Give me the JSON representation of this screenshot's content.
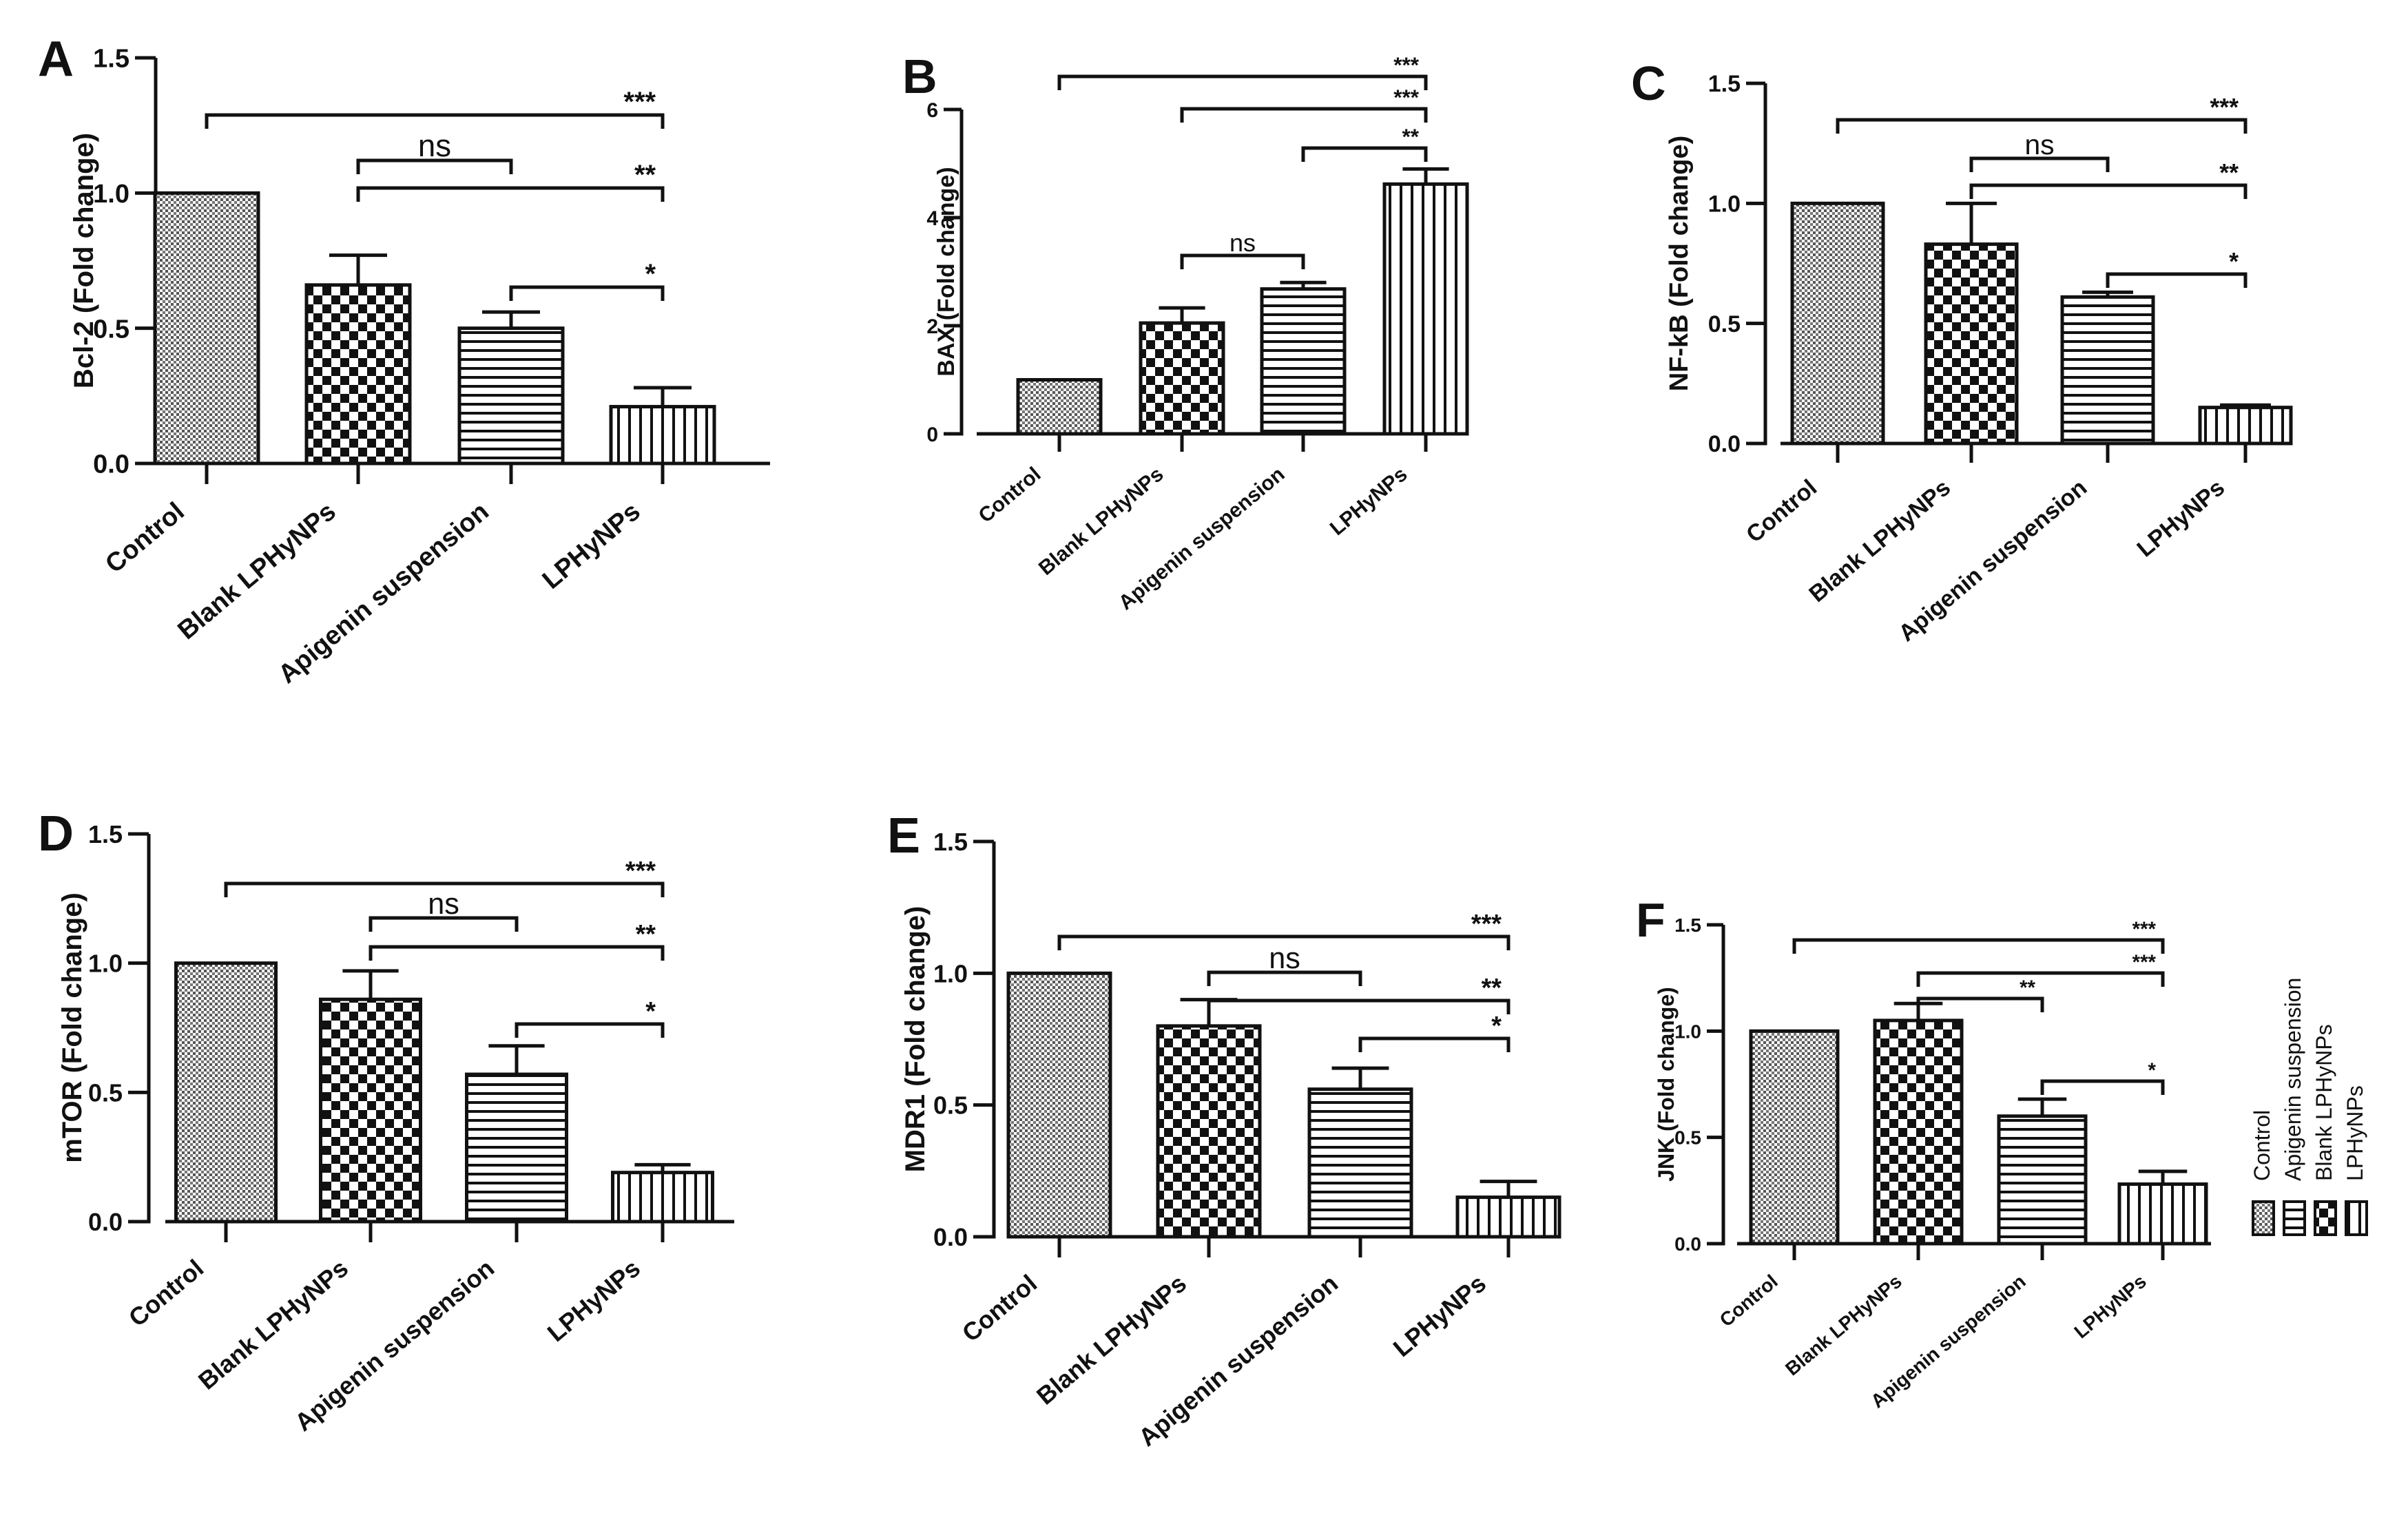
{
  "figure": {
    "categories": [
      "Control",
      "Blank LPHyNPs",
      "Apigenin suspension",
      "LPHyNPs"
    ],
    "patterns": [
      "control",
      "blank",
      "apigenin",
      "lphynps"
    ],
    "legend": {
      "entries": [
        {
          "label": "Control",
          "pattern": "control"
        },
        {
          "label": "Apigenin suspension",
          "pattern": "apigenin"
        },
        {
          "label": "Blank LPHyNPs",
          "pattern": "blank"
        },
        {
          "label": "LPHyNPs",
          "pattern": "lphynps"
        }
      ]
    }
  },
  "chart_data": [
    {
      "type": "bar",
      "panel": "A",
      "ylabel": "Bcl-2 (Fold change)",
      "categories": [
        "Control",
        "Blank LPHyNPs",
        "Apigenin suspension",
        "LPHyNPs"
      ],
      "values": [
        1.0,
        0.66,
        0.5,
        0.21
      ],
      "errors": [
        0,
        0.11,
        0.06,
        0.07
      ],
      "ylim": [
        0,
        1.5
      ],
      "yticks": [
        0,
        0.5,
        1.0,
        1.5
      ],
      "ytick_labels": [
        "0.0",
        "0.5",
        "1.0",
        "1.5"
      ],
      "significance": [
        {
          "from": 0,
          "to": 3,
          "label": "***"
        },
        {
          "from": 1,
          "to": 2,
          "label": "ns"
        },
        {
          "from": 1,
          "to": 3,
          "label": "**"
        },
        {
          "from": 2,
          "to": 3,
          "label": "*"
        }
      ]
    },
    {
      "type": "bar",
      "panel": "B",
      "ylabel": "BAX (Fold change)",
      "categories": [
        "Control",
        "Blank LPHyNPs",
        "Apigenin suspension",
        "LPHyNPs"
      ],
      "values": [
        1.0,
        2.05,
        2.68,
        4.62
      ],
      "errors": [
        0,
        0.28,
        0.12,
        0.28
      ],
      "ylim": [
        0,
        6
      ],
      "yticks": [
        0,
        2,
        4,
        6
      ],
      "ytick_labels": [
        "0",
        "2",
        "4",
        "6"
      ],
      "significance": [
        {
          "from": 0,
          "to": 3,
          "label": "***"
        },
        {
          "from": 1,
          "to": 3,
          "label": "***"
        },
        {
          "from": 2,
          "to": 3,
          "label": "**"
        },
        {
          "from": 1,
          "to": 2,
          "label": "ns"
        }
      ]
    },
    {
      "type": "bar",
      "panel": "C",
      "ylabel": "NF-kB (Fold change)",
      "categories": [
        "Control",
        "Blank LPHyNPs",
        "Apigenin suspension",
        "LPHyNPs"
      ],
      "values": [
        1.0,
        0.83,
        0.61,
        0.15
      ],
      "errors": [
        0,
        0.17,
        0.02,
        0.01
      ],
      "ylim": [
        0,
        1.5
      ],
      "yticks": [
        0,
        0.5,
        1.0,
        1.5
      ],
      "ytick_labels": [
        "0.0",
        "0.5",
        "1.0",
        "1.5"
      ],
      "significance": [
        {
          "from": 0,
          "to": 3,
          "label": "***"
        },
        {
          "from": 1,
          "to": 2,
          "label": "ns"
        },
        {
          "from": 1,
          "to": 3,
          "label": "**"
        },
        {
          "from": 2,
          "to": 3,
          "label": "*"
        }
      ]
    },
    {
      "type": "bar",
      "panel": "D",
      "ylabel": "mTOR (Fold change)",
      "categories": [
        "Control",
        "Blank LPHyNPs",
        "Apigenin suspension",
        "LPHyNPs"
      ],
      "values": [
        1.0,
        0.86,
        0.57,
        0.19
      ],
      "errors": [
        0,
        0.11,
        0.11,
        0.03
      ],
      "ylim": [
        0,
        1.5
      ],
      "yticks": [
        0,
        0.5,
        1.0,
        1.5
      ],
      "ytick_labels": [
        "0.0",
        "0.5",
        "1.0",
        "1.5"
      ],
      "significance": [
        {
          "from": 0,
          "to": 3,
          "label": "***"
        },
        {
          "from": 1,
          "to": 2,
          "label": "ns"
        },
        {
          "from": 1,
          "to": 3,
          "label": "**"
        },
        {
          "from": 2,
          "to": 3,
          "label": "*"
        }
      ]
    },
    {
      "type": "bar",
      "panel": "E",
      "ylabel": "MDR1 (Fold change)",
      "categories": [
        "Control",
        "Blank LPHyNPs",
        "Apigenin suspension",
        "LPHyNPs"
      ],
      "values": [
        1.0,
        0.8,
        0.56,
        0.15
      ],
      "errors": [
        0,
        0.1,
        0.08,
        0.06
      ],
      "ylim": [
        0,
        1.5
      ],
      "yticks": [
        0,
        0.5,
        1.0,
        1.5
      ],
      "ytick_labels": [
        "0.0",
        "0.5",
        "1.0",
        "1.5"
      ],
      "significance": [
        {
          "from": 0,
          "to": 3,
          "label": "***"
        },
        {
          "from": 1,
          "to": 2,
          "label": "ns"
        },
        {
          "from": 1,
          "to": 3,
          "label": "**"
        },
        {
          "from": 2,
          "to": 3,
          "label": "*"
        }
      ]
    },
    {
      "type": "bar",
      "panel": "F",
      "ylabel": "JNK (Fold change)",
      "categories": [
        "Control",
        "Blank LPHyNPs",
        "Apigenin suspension",
        "LPHyNPs"
      ],
      "values": [
        1.0,
        1.05,
        0.6,
        0.28
      ],
      "errors": [
        0,
        0.08,
        0.08,
        0.06
      ],
      "ylim": [
        0,
        1.5
      ],
      "yticks": [
        0,
        0.5,
        1.0,
        1.5
      ],
      "ytick_labels": [
        "0.0",
        "0.5",
        "1.0",
        "1.5"
      ],
      "significance": [
        {
          "from": 0,
          "to": 3,
          "label": "***"
        },
        {
          "from": 1,
          "to": 3,
          "label": "***"
        },
        {
          "from": 1,
          "to": 2,
          "label": "**"
        },
        {
          "from": 2,
          "to": 3,
          "label": "*"
        }
      ]
    }
  ]
}
